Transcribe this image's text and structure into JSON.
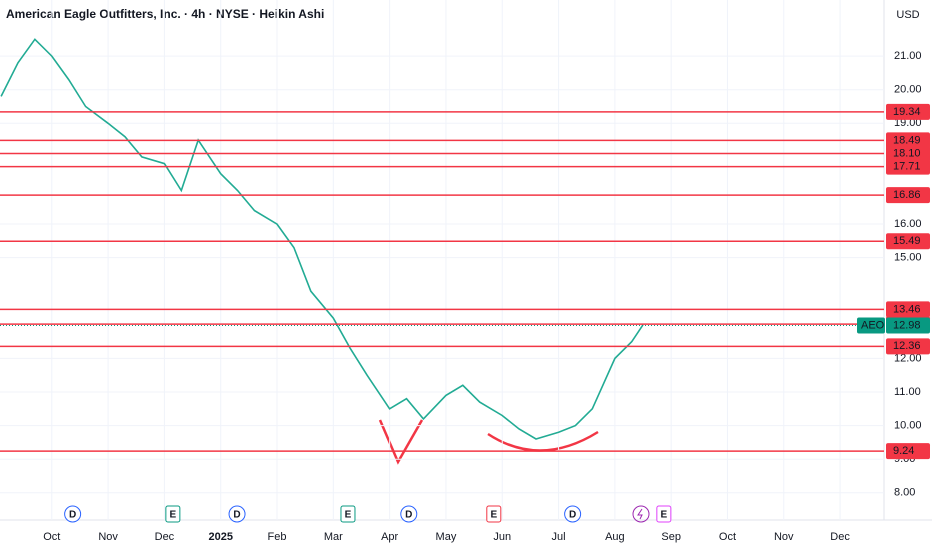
{
  "chart_data": {
    "type": "line",
    "title": "American Eagle Outfitters, Inc. · 4h · NYSE · Heikin Ashi",
    "currency": "USD",
    "symbol": "AEO",
    "last_price": 12.98,
    "price_color": "#089981",
    "xlim": [
      -0.92,
      14.78
    ],
    "ylim": [
      7.19,
      22.67
    ],
    "xticks": [
      {
        "value": 0,
        "label": "Oct"
      },
      {
        "value": 1,
        "label": "Nov"
      },
      {
        "value": 2,
        "label": "Dec"
      },
      {
        "value": 3,
        "label": "2025"
      },
      {
        "value": 4,
        "label": "Feb"
      },
      {
        "value": 5,
        "label": "Mar"
      },
      {
        "value": 6,
        "label": "Apr"
      },
      {
        "value": 7,
        "label": "May"
      },
      {
        "value": 8,
        "label": "Jun"
      },
      {
        "value": 9,
        "label": "Jul"
      },
      {
        "value": 10,
        "label": "Aug"
      },
      {
        "value": 11,
        "label": "Sep"
      },
      {
        "value": 12,
        "label": "Oct"
      },
      {
        "value": 13,
        "label": "Nov"
      },
      {
        "value": 14,
        "label": "Dec"
      }
    ],
    "yticks": [
      {
        "value": 21,
        "label": "21.00"
      },
      {
        "value": 20,
        "label": "20.00"
      },
      {
        "value": 19,
        "label": "19.00"
      },
      {
        "value": 16,
        "label": "16.00"
      },
      {
        "value": 15,
        "label": "15.00"
      },
      {
        "value": 12,
        "label": "12.00"
      },
      {
        "value": 11,
        "label": "11.00"
      },
      {
        "value": 10,
        "label": "10.00"
      },
      {
        "value": 9,
        "label": "9.00"
      },
      {
        "value": 8,
        "label": "8.00"
      }
    ],
    "levels": [
      19.34,
      18.49,
      {
        "value": 18.1,
        "label": "18.10"
      },
      17.71,
      16.86,
      15.49,
      13.46,
      13.02,
      12.36,
      9.24
    ],
    "level_color": "#f23645",
    "series": [
      {
        "color": "#22ab94",
        "x": [
          -0.9,
          -0.6,
          -0.3,
          0,
          0.3,
          0.6,
          1.0,
          1.3,
          1.6,
          2.0,
          2.3,
          2.6,
          3.0,
          3.3,
          3.6,
          4.0,
          4.3,
          4.6,
          5.0,
          5.3,
          5.6,
          6.0,
          6.3,
          6.6,
          7.0,
          7.3,
          7.6,
          8.0,
          8.3,
          8.6,
          9.0,
          9.3,
          9.6,
          10.0,
          10.3,
          10.5
        ],
        "values": [
          19.8,
          20.8,
          21.5,
          21.0,
          20.3,
          19.5,
          19.0,
          18.6,
          18.0,
          17.8,
          17.0,
          18.5,
          17.5,
          17.0,
          16.4,
          16.0,
          15.3,
          14.0,
          13.2,
          12.3,
          11.5,
          10.5,
          10.8,
          10.2,
          10.9,
          11.2,
          10.7,
          10.3,
          9.9,
          9.6,
          9.8,
          10.0,
          10.5,
          12.0,
          12.5,
          13.0
        ]
      }
    ],
    "events": [
      {
        "label": "D",
        "x": 0.37
      },
      {
        "label": "E",
        "x": 2.15
      },
      {
        "label": "D",
        "x": 3.29
      },
      {
        "label": "E",
        "x": 5.26
      },
      {
        "label": "D",
        "x": 6.34
      },
      {
        "label": "E",
        "x": 7.85
      },
      {
        "label": "D",
        "x": 9.25
      },
      {
        "label": "E",
        "x": 10.87
      }
    ]
  }
}
